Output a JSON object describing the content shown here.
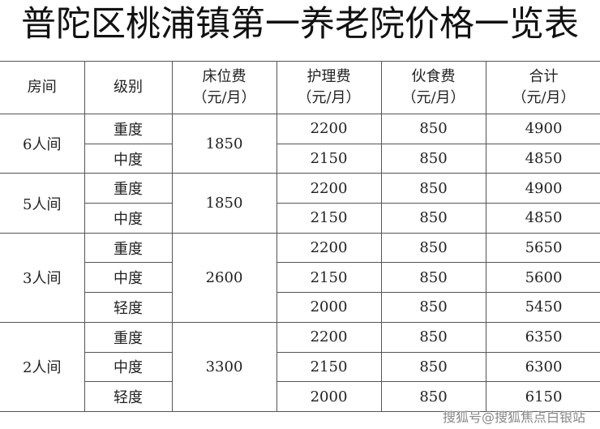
{
  "title": "普陀区桃浦镇第一养老院价格一览表",
  "headers": [
    {
      "l1": "房间",
      "l2": ""
    },
    {
      "l1": "级别",
      "l2": ""
    },
    {
      "l1": "床位费",
      "l2": "（元/月）"
    },
    {
      "l1": "护理费",
      "l2": "（元/月）"
    },
    {
      "l1": "伙食费",
      "l2": "（元/月）"
    },
    {
      "l1": "合计",
      "l2": "（元/月）"
    }
  ],
  "groups": [
    {
      "room": "6人间",
      "bed": "1850",
      "rows": [
        {
          "level": "重度",
          "care": "2200",
          "food": "850",
          "total": "4900"
        },
        {
          "level": "中度",
          "care": "2150",
          "food": "850",
          "total": "4850"
        }
      ]
    },
    {
      "room": "5人间",
      "bed": "1850",
      "rows": [
        {
          "level": "重度",
          "care": "2200",
          "food": "850",
          "total": "4900"
        },
        {
          "level": "中度",
          "care": "2150",
          "food": "850",
          "total": "4850"
        }
      ]
    },
    {
      "room": "3人间",
      "bed": "2600",
      "rows": [
        {
          "level": "重度",
          "care": "2200",
          "food": "850",
          "total": "5650"
        },
        {
          "level": "中度",
          "care": "2150",
          "food": "850",
          "total": "5600"
        },
        {
          "level": "轻度",
          "care": "2000",
          "food": "850",
          "total": "5450"
        }
      ]
    },
    {
      "room": "2人间",
      "bed": "3300",
      "rows": [
        {
          "level": "重度",
          "care": "2200",
          "food": "850",
          "total": "6350"
        },
        {
          "level": "中度",
          "care": "2150",
          "food": "850",
          "total": "6300"
        },
        {
          "level": "轻度",
          "care": "2000",
          "food": "850",
          "total": "6150"
        }
      ]
    }
  ],
  "watermark": "搜狐号@搜狐焦点白银站"
}
